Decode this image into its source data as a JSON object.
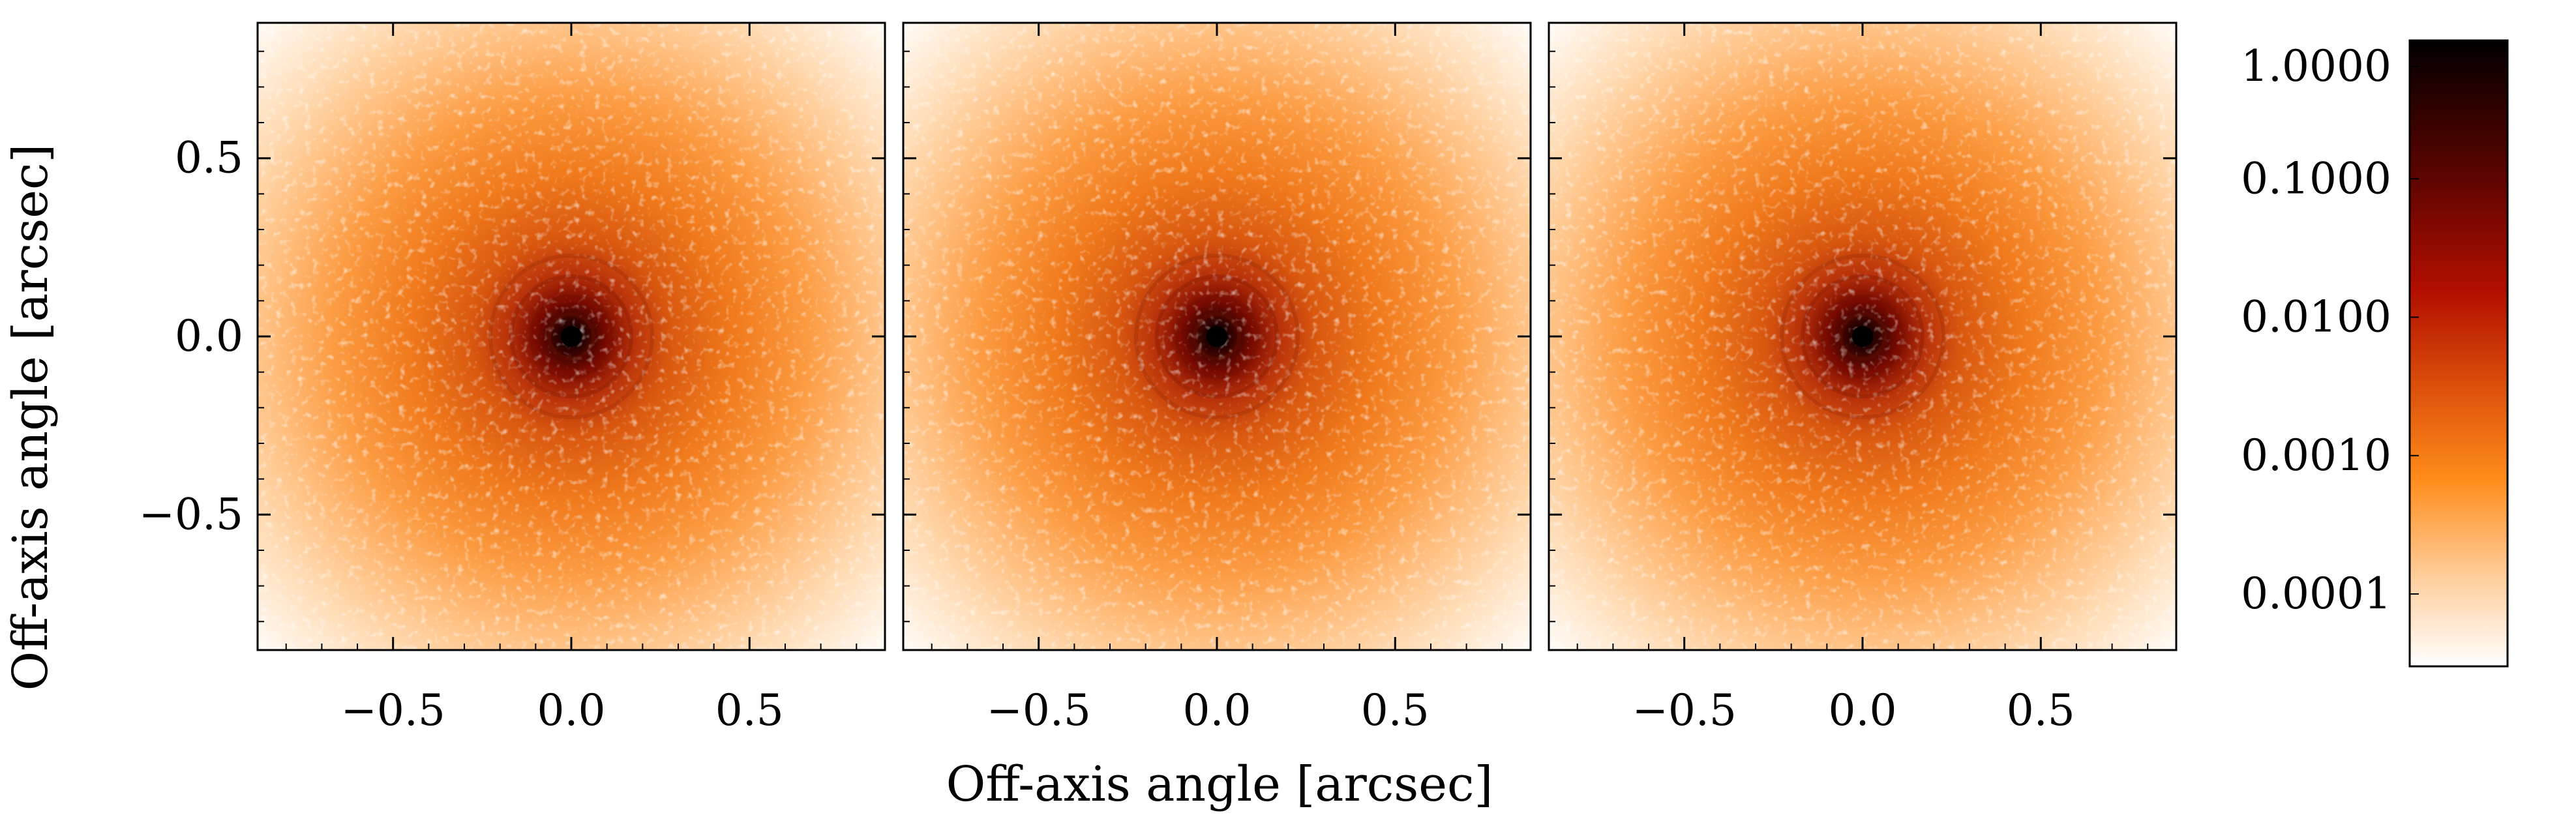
{
  "chart_data": {
    "type": "heatmap",
    "panel_count": 3,
    "xlabel": "Off-axis angle [arcsec]",
    "ylabel": "Off-axis angle [arcsec]",
    "xlim": [
      -0.88,
      0.88
    ],
    "ylim": [
      -0.88,
      0.88
    ],
    "xticks": [
      -0.5,
      0.0,
      0.5
    ],
    "xtick_labels": [
      "−0.5",
      "0.0",
      "0.5"
    ],
    "yticks": [
      0.5,
      0.0,
      -0.5
    ],
    "ytick_labels": [
      "0.5",
      "0.0",
      "−0.5"
    ],
    "colorbar": {
      "scale": "log",
      "range": [
        3e-05,
        1.0
      ],
      "ticks": [
        1.0,
        0.1,
        0.01,
        0.001,
        0.0001
      ],
      "tick_labels": [
        "1.0000",
        "0.1000",
        "0.0100",
        "0.0010",
        "0.0001"
      ],
      "colormap_stops": [
        "#ffffff",
        "#ffcf9e",
        "#ff8c1a",
        "#d84a0a",
        "#b20f00",
        "#5e0400",
        "#000000"
      ]
    },
    "description_values": {
      "peak_center": [
        0.0,
        0.0
      ],
      "peak_value": 1.0
    }
  }
}
